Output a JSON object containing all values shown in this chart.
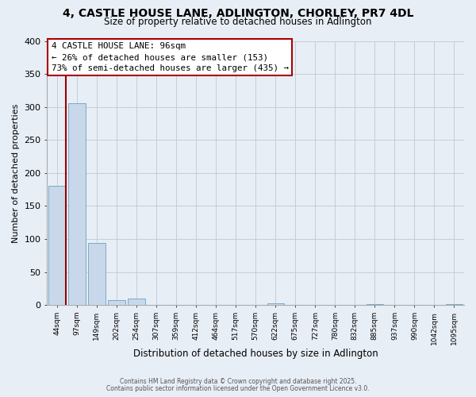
{
  "title_line1": "4, CASTLE HOUSE LANE, ADLINGTON, CHORLEY, PR7 4DL",
  "title_line2": "Size of property relative to detached houses in Adlington",
  "xlabel": "Distribution of detached houses by size in Adlington",
  "ylabel": "Number of detached properties",
  "bar_color": "#c8d8ea",
  "bar_edge_color": "#7aaac8",
  "background_color": "#e8eef6",
  "grid_color": "#c0c8d8",
  "bin_labels": [
    "44sqm",
    "97sqm",
    "149sqm",
    "202sqm",
    "254sqm",
    "307sqm",
    "359sqm",
    "412sqm",
    "464sqm",
    "517sqm",
    "570sqm",
    "622sqm",
    "675sqm",
    "727sqm",
    "780sqm",
    "832sqm",
    "885sqm",
    "937sqm",
    "990sqm",
    "1042sqm",
    "1095sqm"
  ],
  "bar_heights": [
    180,
    306,
    94,
    8,
    10,
    0,
    0,
    0,
    0,
    0,
    0,
    3,
    0,
    0,
    0,
    0,
    2,
    0,
    0,
    0,
    1
  ],
  "annotation_title": "4 CASTLE HOUSE LANE: 96sqm",
  "annotation_line2": "← 26% of detached houses are smaller (153)",
  "annotation_line3": "73% of semi-detached houses are larger (435) →",
  "annotation_box_color": "#ffffff",
  "annotation_box_edge": "#aa0000",
  "red_line_color": "#990000",
  "ylim": [
    0,
    400
  ],
  "yticks": [
    0,
    50,
    100,
    150,
    200,
    250,
    300,
    350,
    400
  ],
  "footnote1": "Contains HM Land Registry data © Crown copyright and database right 2025.",
  "footnote2": "Contains public sector information licensed under the Open Government Licence v3.0."
}
